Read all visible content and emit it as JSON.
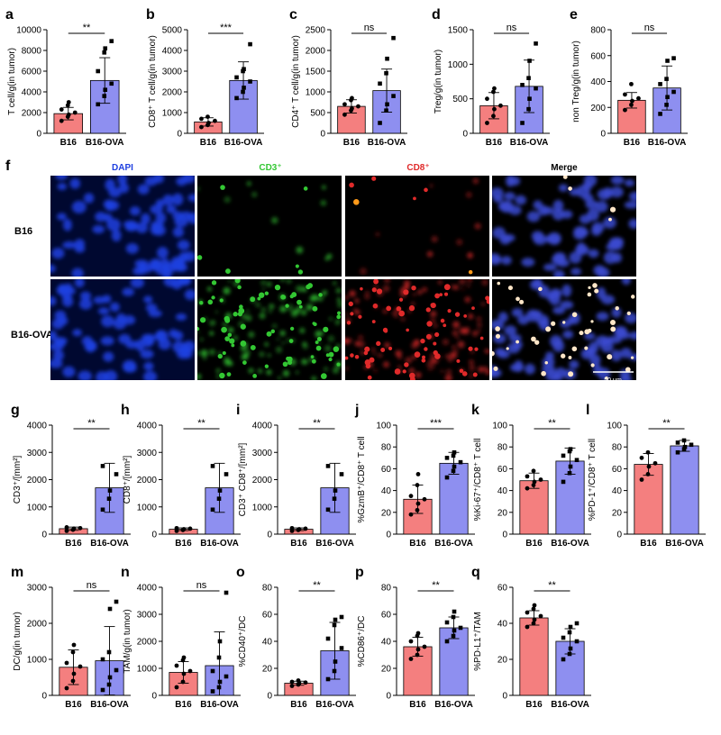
{
  "colors": {
    "b16": "#f47f7f",
    "ova": "#8e8ff0",
    "dapi": "#1f3fe0",
    "cd3": "#33c733",
    "cd8": "#e02a2a"
  },
  "chart_data": [
    {
      "letter": "a",
      "type": "bar",
      "ylabel": "T cell/g(in tumor)",
      "ylim": [
        0,
        10000
      ],
      "yticks": [
        "0",
        "2000",
        "4000",
        "6000",
        "8000",
        "10000"
      ],
      "categories": [
        "B16",
        "B16-OVA"
      ],
      "values": [
        1900,
        5100
      ],
      "sd": [
        600,
        2200
      ],
      "sig": "**",
      "points": [
        [
          1200,
          1600,
          1800,
          2000,
          2300,
          2700,
          3000
        ],
        [
          2800,
          3600,
          4200,
          4800,
          6000,
          7800,
          8200,
          8900
        ]
      ]
    },
    {
      "letter": "b",
      "type": "bar",
      "ylabel": "CD8⁺ T cell/g(in tumor)",
      "ylim": [
        0,
        5000
      ],
      "yticks": [
        "0",
        "1000",
        "2000",
        "3000",
        "4000",
        "5000"
      ],
      "categories": [
        "B16",
        "B16-OVA"
      ],
      "values": [
        550,
        2550
      ],
      "sd": [
        200,
        900
      ],
      "sig": "***",
      "points": [
        [
          300,
          400,
          500,
          600,
          700,
          800
        ],
        [
          1700,
          2000,
          2200,
          2500,
          2700,
          3000,
          3100,
          4300
        ]
      ]
    },
    {
      "letter": "c",
      "type": "bar",
      "ylabel": "CD4⁺ T cell/g(in tumor)",
      "ylim": [
        0,
        2500
      ],
      "yticks": [
        "0",
        "500",
        "1000",
        "1500",
        "2000",
        "2500"
      ],
      "categories": [
        "B16",
        "B16-OVA"
      ],
      "values": [
        650,
        1030
      ],
      "sd": [
        160,
        520
      ],
      "sig": "ns",
      "points": [
        [
          450,
          550,
          600,
          650,
          700,
          800,
          850
        ],
        [
          250,
          550,
          700,
          900,
          1200,
          1450,
          1800,
          2300
        ]
      ]
    },
    {
      "letter": "d",
      "type": "bar",
      "ylabel": "Treg/g(in tumor)",
      "ylim": [
        0,
        1500
      ],
      "yticks": [
        "0",
        "500",
        "1000",
        "1500"
      ],
      "categories": [
        "B16",
        "B16-OVA"
      ],
      "values": [
        400,
        680
      ],
      "sd": [
        190,
        380
      ],
      "sig": "ns",
      "points": [
        [
          150,
          250,
          350,
          400,
          500,
          600,
          650
        ],
        [
          150,
          350,
          500,
          650,
          700,
          800,
          1050,
          1300
        ]
      ]
    },
    {
      "letter": "e",
      "type": "bar",
      "ylabel": "non Treg/g(in tumor)",
      "ylim": [
        0,
        800
      ],
      "yticks": [
        "0",
        "200",
        "400",
        "600",
        "800"
      ],
      "categories": [
        "B16",
        "B16-OVA"
      ],
      "values": [
        255,
        350
      ],
      "sd": [
        60,
        170
      ],
      "sig": "ns",
      "points": [
        [
          180,
          220,
          250,
          270,
          300,
          380
        ],
        [
          150,
          220,
          280,
          320,
          380,
          420,
          560,
          580
        ]
      ]
    },
    {
      "letter": "g",
      "type": "bar",
      "ylabel": "CD3⁺/[mm²]",
      "ylim": [
        0,
        4000
      ],
      "yticks": [
        "0",
        "1000",
        "2000",
        "3000",
        "4000"
      ],
      "categories": [
        "B16",
        "B16-OVA"
      ],
      "values": [
        200,
        1700
      ],
      "sd": [
        60,
        900
      ],
      "sig": "**",
      "points": [
        [
          120,
          160,
          200,
          220,
          250
        ],
        [
          900,
          1300,
          1600,
          2200,
          2500
        ]
      ]
    },
    {
      "letter": "h",
      "type": "bar",
      "ylabel": "CD8⁺/[mm²]",
      "ylim": [
        0,
        4000
      ],
      "yticks": [
        "0",
        "1000",
        "2000",
        "3000",
        "4000"
      ],
      "categories": [
        "B16",
        "B16-OVA"
      ],
      "values": [
        180,
        1700
      ],
      "sd": [
        50,
        900
      ],
      "sig": "**",
      "points": [
        [
          120,
          150,
          180,
          200,
          220
        ],
        [
          900,
          1300,
          1600,
          2200,
          2500
        ]
      ]
    },
    {
      "letter": "i",
      "type": "bar",
      "ylabel": "CD3⁺ CD8⁺/[mm²]",
      "ylim": [
        0,
        4000
      ],
      "yticks": [
        "0",
        "1000",
        "2000",
        "3000",
        "4000"
      ],
      "categories": [
        "B16",
        "B16-OVA"
      ],
      "values": [
        180,
        1700
      ],
      "sd": [
        50,
        900
      ],
      "sig": "**",
      "points": [
        [
          120,
          150,
          180,
          200,
          220
        ],
        [
          900,
          1300,
          1600,
          2200,
          2500
        ]
      ]
    },
    {
      "letter": "j",
      "type": "bar",
      "ylabel": "%GzmB⁺/CD8⁺ T cell",
      "ylim": [
        0,
        100
      ],
      "yticks": [
        "0",
        "20",
        "40",
        "60",
        "80",
        "100"
      ],
      "categories": [
        "B16",
        "B16-OVA"
      ],
      "values": [
        32,
        65
      ],
      "sd": [
        13,
        10
      ],
      "sig": "***",
      "points": [
        [
          18,
          22,
          28,
          32,
          35,
          45,
          55
        ],
        [
          52,
          58,
          62,
          66,
          70,
          72,
          75
        ]
      ]
    },
    {
      "letter": "k",
      "type": "bar",
      "ylabel": "%Ki-67⁺/CD8⁺ T cell",
      "ylim": [
        0,
        100
      ],
      "yticks": [
        "0",
        "20",
        "40",
        "60",
        "80",
        "100"
      ],
      "categories": [
        "B16",
        "B16-OVA"
      ],
      "values": [
        49,
        67
      ],
      "sd": [
        7,
        12
      ],
      "sig": "**",
      "points": [
        [
          42,
          45,
          48,
          50,
          53,
          58
        ],
        [
          48,
          56,
          62,
          68,
          72,
          76,
          78
        ]
      ]
    },
    {
      "letter": "l",
      "type": "bar",
      "ylabel": "%PD-1⁺/CD8⁺ T cell",
      "ylim": [
        0,
        100
      ],
      "yticks": [
        "0",
        "20",
        "40",
        "60",
        "80",
        "100"
      ],
      "categories": [
        "B16",
        "B16-OVA"
      ],
      "values": [
        64,
        81
      ],
      "sd": [
        10,
        5
      ],
      "sig": "**",
      "points": [
        [
          50,
          55,
          62,
          65,
          70,
          75
        ],
        [
          75,
          78,
          80,
          82,
          84,
          86
        ]
      ]
    },
    {
      "letter": "m",
      "type": "bar",
      "ylabel": "DC/g(in tumor)",
      "ylim": [
        0,
        3000
      ],
      "yticks": [
        "0",
        "1000",
        "2000",
        "3000"
      ],
      "categories": [
        "B16",
        "B16-OVA"
      ],
      "values": [
        780,
        960
      ],
      "sd": [
        480,
        950
      ],
      "sig": "ns",
      "points": [
        [
          200,
          400,
          600,
          800,
          900,
          1200,
          1400
        ],
        [
          150,
          300,
          500,
          700,
          1000,
          1200,
          2400,
          2600
        ]
      ]
    },
    {
      "letter": "n",
      "type": "bar",
      "ylabel": "TAM/g(in tumor)",
      "ylim": [
        0,
        4000
      ],
      "yticks": [
        "0",
        "1000",
        "2000",
        "3000",
        "4000"
      ],
      "categories": [
        "B16",
        "B16-OVA"
      ],
      "values": [
        850,
        1100
      ],
      "sd": [
        400,
        1250
      ],
      "sig": "ns",
      "points": [
        [
          300,
          500,
          800,
          900,
          1100,
          1300,
          1400
        ],
        [
          150,
          300,
          500,
          700,
          900,
          1400,
          2000,
          3800
        ]
      ]
    },
    {
      "letter": "o",
      "type": "bar",
      "ylabel": "%CD40⁺/DC",
      "ylim": [
        0,
        80
      ],
      "yticks": [
        "0",
        "20",
        "40",
        "60",
        "80"
      ],
      "categories": [
        "B16",
        "B16-OVA"
      ],
      "values": [
        9,
        33
      ],
      "sd": [
        1.5,
        21
      ],
      "sig": "**",
      "points": [
        [
          7,
          8,
          9,
          9.5,
          10,
          11
        ],
        [
          12,
          18,
          25,
          35,
          42,
          52,
          56,
          58
        ]
      ]
    },
    {
      "letter": "p",
      "type": "bar",
      "ylabel": "%CD86⁺/DC",
      "ylim": [
        0,
        80
      ],
      "yticks": [
        "0",
        "20",
        "40",
        "60",
        "80"
      ],
      "categories": [
        "B16",
        "B16-OVA"
      ],
      "values": [
        36,
        50
      ],
      "sd": [
        7,
        8
      ],
      "sig": "**",
      "points": [
        [
          27,
          30,
          34,
          36,
          40,
          44,
          46
        ],
        [
          40,
          44,
          48,
          50,
          54,
          58,
          62
        ]
      ]
    },
    {
      "letter": "q",
      "type": "bar",
      "ylabel": "%PD-L1⁺/TAM",
      "ylim": [
        0,
        60
      ],
      "yticks": [
        "0",
        "20",
        "40",
        "60"
      ],
      "categories": [
        "B16",
        "B16-OVA"
      ],
      "values": [
        43,
        30
      ],
      "sd": [
        4,
        7
      ],
      "sig": "**",
      "points": [
        [
          38,
          40,
          42,
          44,
          46,
          48,
          50
        ],
        [
          20,
          23,
          26,
          30,
          32,
          35,
          38,
          40
        ]
      ]
    }
  ],
  "micrograph": {
    "letter": "f",
    "channels": [
      "DAPI",
      "CD3⁺",
      "CD8⁺",
      "Merge"
    ],
    "rows": [
      "B16",
      "B16-OVA"
    ],
    "scale_bar": "50 μm"
  }
}
